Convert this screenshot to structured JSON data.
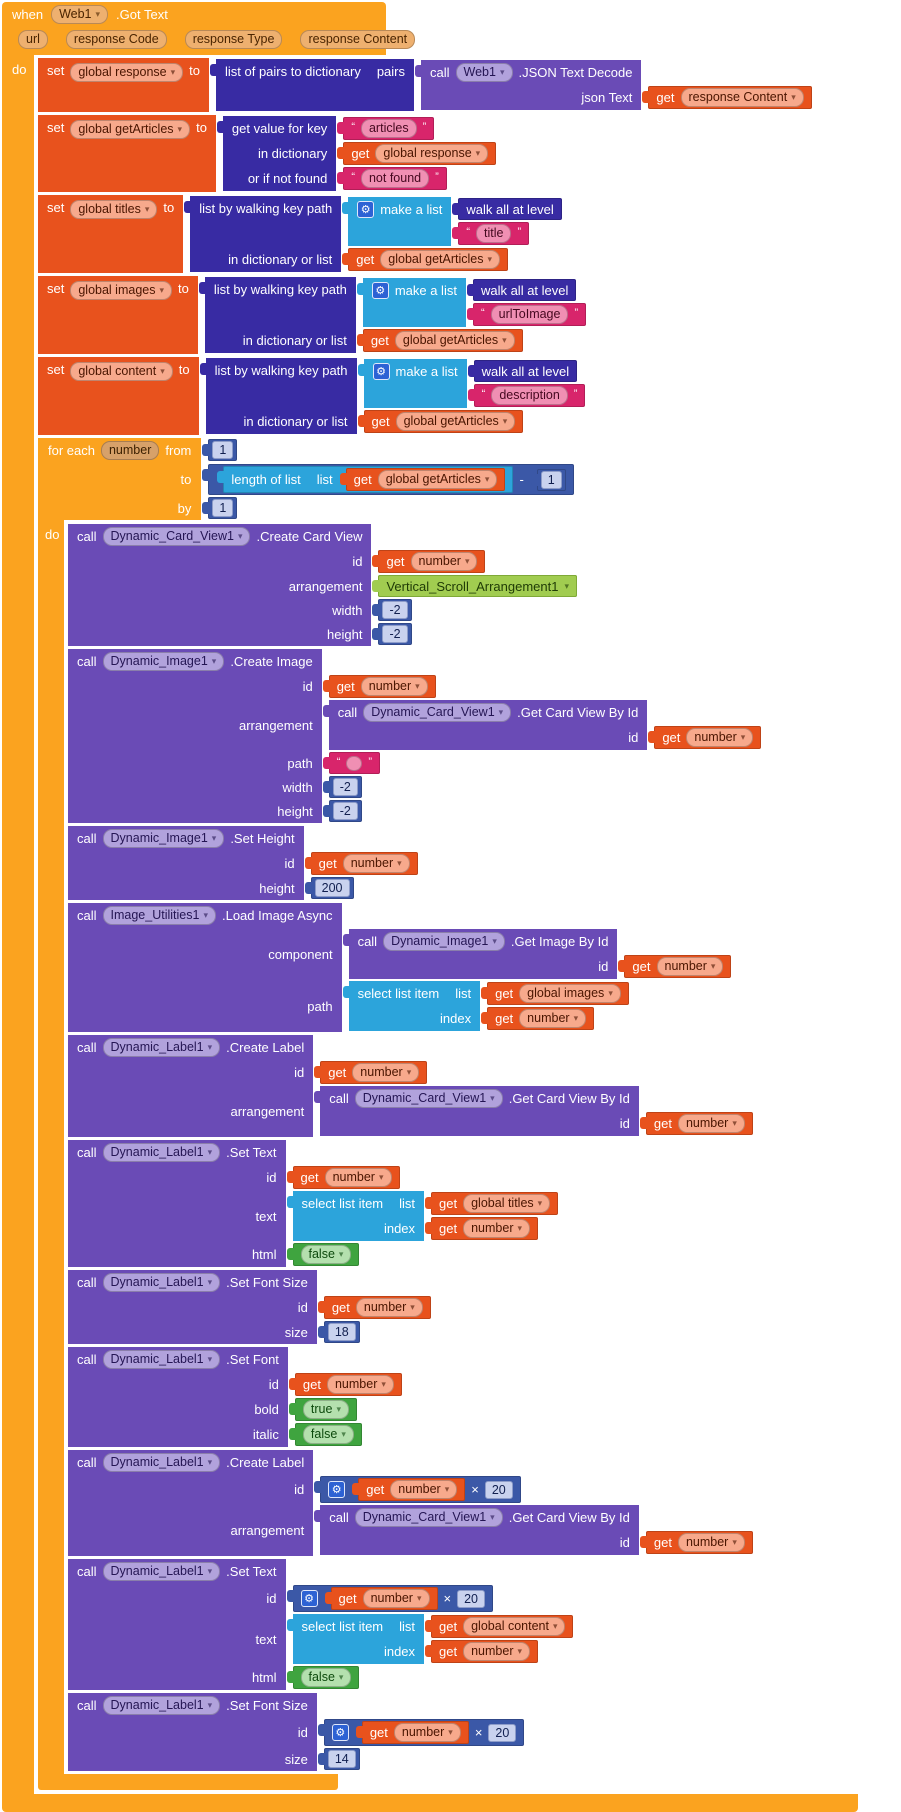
{
  "icons": {
    "gear": "⚙",
    "dropdown": "▾",
    "quote_open": "“",
    "quote_close": "”"
  },
  "colors": {
    "event": "#fba31f",
    "variable": "#e8521d",
    "dictionary": "#382ba3",
    "list": "#2ca4db",
    "math": "#3b58a7",
    "text": "#d8256b",
    "procedure": "#6a4bb6",
    "logic": "#3fa43f",
    "component": "#a1cc50",
    "canvas": "#ffffff"
  },
  "kw": {
    "when": "when",
    "do": "do",
    "set": "set",
    "to": "to",
    "get": "get",
    "call": "call",
    "for_each": "for each",
    "from": "from",
    "by": "by",
    "minus": "-",
    "times": "×"
  },
  "event": {
    "component": "Web1",
    "method": ".Got Text",
    "params": [
      "url",
      "response Code",
      "response Type",
      "response Content"
    ]
  },
  "vars": {
    "response": "global response",
    "get_articles": "global getArticles",
    "titles": "global titles",
    "images": "global images",
    "content": "global content",
    "number": "number",
    "response_content": "response Content"
  },
  "strings": {
    "articles": "articles",
    "not_found": "not found",
    "title": "title",
    "url_to_image": "urlToImage",
    "description": "description",
    "empty": ""
  },
  "numbers": {
    "one": "1",
    "neg_two": "-2",
    "twenty": "20",
    "two_hundred": "200",
    "eighteen": "18",
    "fourteen": "14"
  },
  "components": {
    "web1": "Web1",
    "card_view": "Dynamic_Card_View1",
    "image": "Dynamic_Image1",
    "image_utils": "Image_Utilities1",
    "label": "Dynamic_Label1",
    "arrangement": "Vertical_Scroll_Arrangement1"
  },
  "methods": {
    "json_decode": ".JSON Text Decode",
    "create_card_view": ".Create Card View",
    "get_card_view": ".Get Card View By Id",
    "create_image": ".Create Image",
    "set_height": ".Set Height",
    "get_image": ".Get Image By Id",
    "load_image_async": ".Load Image Async",
    "create_label": ".Create Label",
    "set_text": ".Set Text",
    "set_font_size": ".Set Font Size",
    "set_font": ".Set Font"
  },
  "labels": {
    "pairs": "pairs",
    "json_text": "json Text",
    "list_of_pairs": "list of pairs to dictionary",
    "get_value_for_key": "get value for key",
    "in_dictionary": "in dictionary",
    "or_if_not_found": "or if not found",
    "list_by_walking": "list by walking key path",
    "in_dict_or_list": "in dictionary or list",
    "make_a_list": "make a list",
    "walk_all": "walk all at level",
    "length_of_list": "length of list",
    "list": "list",
    "select_list_item": "select list item",
    "index": "index",
    "id": "id",
    "arrangement": "arrangement",
    "width": "width",
    "height": "height",
    "path": "path",
    "component": "component",
    "text": "text",
    "html": "html",
    "size": "size",
    "bold": "bold",
    "italic": "italic"
  },
  "logic": {
    "true": "true",
    "false": "false"
  }
}
